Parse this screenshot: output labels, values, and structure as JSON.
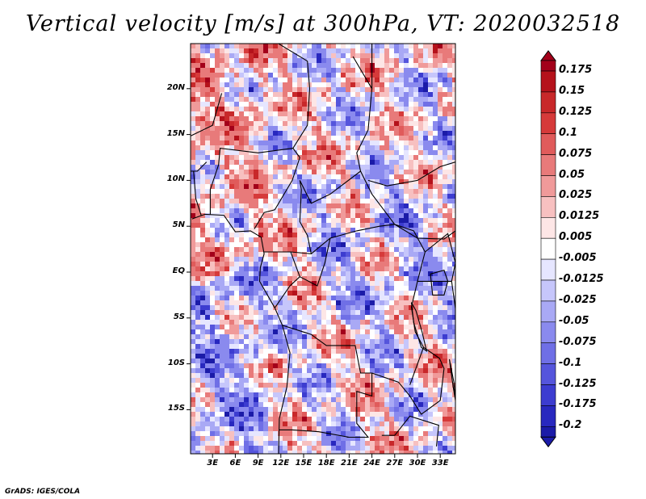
{
  "title": "Vertical velocity [m/s] at 300hPa, VT: 2020032518",
  "credit": "GrADS: IGES/COLA",
  "map": {
    "region": "Central Africa",
    "lat_range": [
      -20,
      25
    ],
    "lon_range": [
      0,
      35
    ],
    "y_ticks": [
      "20N",
      "15N",
      "10N",
      "5N",
      "EQ",
      "5S",
      "10S",
      "15S"
    ],
    "x_ticks": [
      "3E",
      "6E",
      "9E",
      "12E",
      "15E",
      "18E",
      "21E",
      "24E",
      "27E",
      "30E",
      "33E"
    ]
  },
  "colorbar": {
    "labels": [
      "0.175",
      "0.15",
      "0.125",
      "0.1",
      "0.075",
      "0.05",
      "0.025",
      "0.0125",
      "0.005",
      "-0.005",
      "-0.0125",
      "-0.025",
      "-0.05",
      "-0.075",
      "-0.1",
      "-0.125",
      "-0.175",
      "-0.2"
    ],
    "colors": [
      "#a3001a",
      "#b5121b",
      "#c8282a",
      "#d63a3a",
      "#e05b5b",
      "#e87a7a",
      "#f09a9a",
      "#f7c0c0",
      "#fde6e6",
      "#ffffff",
      "#e6e6ff",
      "#c6c6fb",
      "#a9a9f5",
      "#8a8aee",
      "#6f6fe6",
      "#5555dc",
      "#3c3cd0",
      "#2828bf",
      "#1b1ba8"
    ]
  }
}
